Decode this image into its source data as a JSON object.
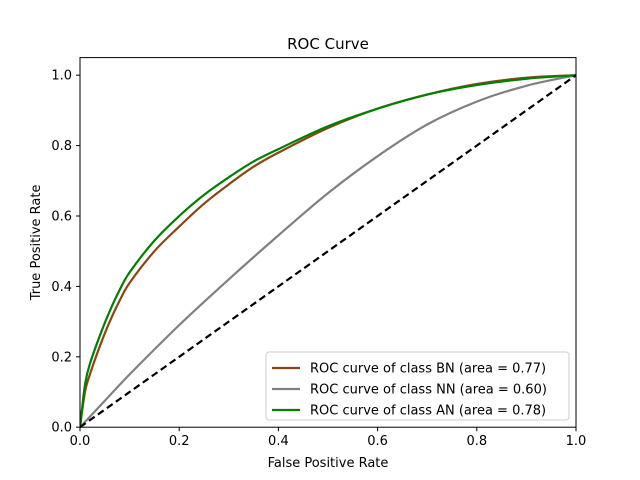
{
  "chart_data": {
    "type": "line",
    "title": "ROC Curve",
    "xlabel": "False Positive Rate",
    "ylabel": "True Positive Rate",
    "xlim": [
      0,
      1
    ],
    "ylim": [
      0,
      1.05
    ],
    "grid": false,
    "legend_position": "lower-right",
    "xticks": [
      0.0,
      0.2,
      0.4,
      0.6,
      0.8,
      1.0
    ],
    "xtick_labels": [
      "0.0",
      "0.2",
      "0.4",
      "0.6",
      "0.8",
      "1.0"
    ],
    "yticks": [
      0.0,
      0.2,
      0.4,
      0.6,
      0.8,
      1.0
    ],
    "ytick_labels": [
      "0.0",
      "0.2",
      "0.4",
      "0.6",
      "0.8",
      "1.0"
    ],
    "series": [
      {
        "name": "ROC curve of class BN (area = 0.77)",
        "color": "#8b4513",
        "x": [
          0,
          0.01,
          0.02,
          0.04,
          0.06,
          0.08,
          0.1,
          0.15,
          0.2,
          0.25,
          0.3,
          0.35,
          0.4,
          0.5,
          0.6,
          0.7,
          0.8,
          0.9,
          1.0
        ],
        "y": [
          0,
          0.1,
          0.15,
          0.23,
          0.3,
          0.36,
          0.41,
          0.5,
          0.57,
          0.635,
          0.69,
          0.74,
          0.78,
          0.85,
          0.905,
          0.945,
          0.975,
          0.993,
          1.0
        ]
      },
      {
        "name": "ROC curve of class NN (area = 0.60)",
        "color": "#808080",
        "x": [
          0,
          0.05,
          0.1,
          0.2,
          0.3,
          0.4,
          0.5,
          0.6,
          0.7,
          0.8,
          0.9,
          1.0
        ],
        "y": [
          0,
          0.075,
          0.15,
          0.29,
          0.42,
          0.545,
          0.665,
          0.77,
          0.86,
          0.925,
          0.97,
          1.0
        ]
      },
      {
        "name": "ROC curve of class AN (area = 0.78)",
        "color": "#008000",
        "x": [
          0,
          0.01,
          0.02,
          0.04,
          0.06,
          0.08,
          0.1,
          0.15,
          0.2,
          0.25,
          0.3,
          0.35,
          0.4,
          0.5,
          0.6,
          0.7,
          0.8,
          0.9,
          1.0
        ],
        "y": [
          0,
          0.12,
          0.18,
          0.26,
          0.33,
          0.39,
          0.44,
          0.53,
          0.6,
          0.66,
          0.71,
          0.755,
          0.79,
          0.855,
          0.905,
          0.945,
          0.972,
          0.99,
          1.0
        ]
      }
    ],
    "reference_line": {
      "x": [
        0,
        1
      ],
      "y": [
        0,
        1
      ],
      "color": "#000000",
      "style": "dashed"
    }
  }
}
